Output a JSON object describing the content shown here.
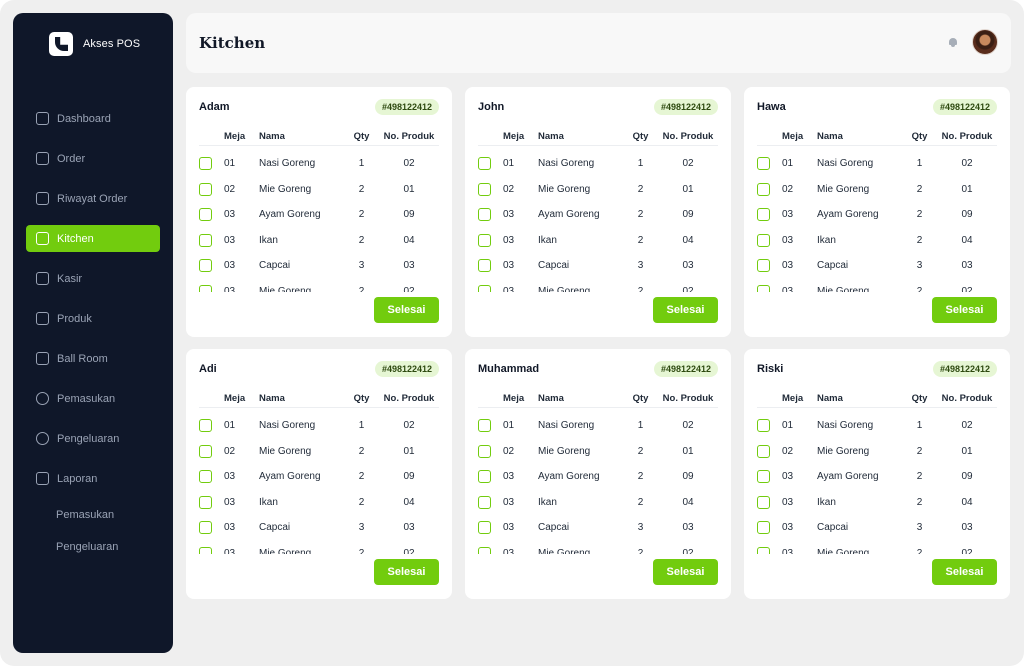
{
  "app": {
    "name": "Akses POS"
  },
  "sidebar": {
    "items": [
      {
        "label": "Dashboard",
        "icon": "home-icon"
      },
      {
        "label": "Order",
        "icon": "cart-icon"
      },
      {
        "label": "Riwayat Order",
        "icon": "calendar-icon"
      },
      {
        "label": "Kitchen",
        "icon": "kitchen-icon",
        "active": true
      },
      {
        "label": "Kasir",
        "icon": "cashier-icon"
      },
      {
        "label": "Produk",
        "icon": "product-icon"
      },
      {
        "label": "Ball Room",
        "icon": "calendar-icon"
      },
      {
        "label": "Pemasukan",
        "icon": "coin-icon"
      },
      {
        "label": "Pengeluaran",
        "icon": "coin-icon"
      },
      {
        "label": "Laporan",
        "icon": "report-icon"
      }
    ],
    "sub_items": [
      {
        "label": "Pemasukan"
      },
      {
        "label": "Pengeluaran"
      }
    ]
  },
  "header": {
    "title": "Kitchen"
  },
  "table_headers": {
    "meja": "Meja",
    "nama": "Nama",
    "qty": "Qty",
    "no_produk": "No. Produk"
  },
  "done_label": "Selesai",
  "rows": [
    {
      "meja": "01",
      "nama": "Nasi Goreng",
      "qty": "1",
      "no_produk": "02"
    },
    {
      "meja": "02",
      "nama": "Mie Goreng",
      "qty": "2",
      "no_produk": "01"
    },
    {
      "meja": "03",
      "nama": "Ayam Goreng",
      "qty": "2",
      "no_produk": "09"
    },
    {
      "meja": "03",
      "nama": "Ikan",
      "qty": "2",
      "no_produk": "04"
    },
    {
      "meja": "03",
      "nama": "Capcai",
      "qty": "3",
      "no_produk": "03"
    },
    {
      "meja": "03",
      "nama": "Mie Goreng",
      "qty": "2",
      "no_produk": "02"
    }
  ],
  "orders": [
    {
      "customer": "Adam",
      "order_id": "#498122412"
    },
    {
      "customer": "John",
      "order_id": "#498122412"
    },
    {
      "customer": "Hawa",
      "order_id": "#498122412"
    },
    {
      "customer": "Adi",
      "order_id": "#498122412"
    },
    {
      "customer": "Muhammad",
      "order_id": "#498122412"
    },
    {
      "customer": "Riski",
      "order_id": "#498122412"
    }
  ],
  "colors": {
    "accent": "#72cc0e",
    "sidebar_bg": "#0f1729",
    "badge_bg": "#e6f6d4"
  }
}
